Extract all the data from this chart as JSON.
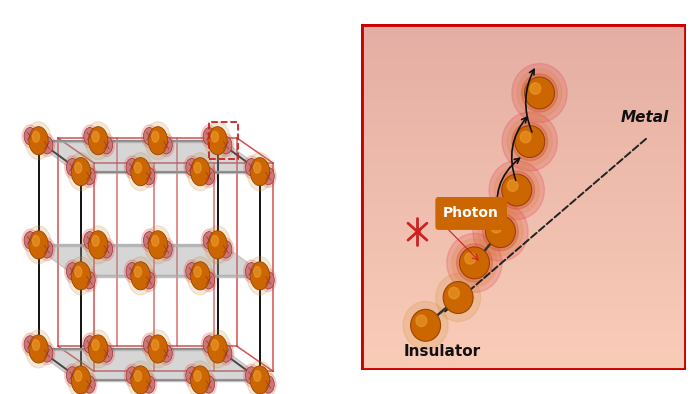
{
  "bg_color": "#ffffff",
  "lattice_orange": "#cc6600",
  "lattice_small_color": "#cc7777",
  "box_black": "#111111",
  "box_red": "#cc3333",
  "right_border_color": "#cc0000",
  "photon_label": "Photon",
  "photon_box_color": "#cc6600",
  "insulator_label": "Insulator",
  "metal_label": "Metal",
  "atom_orange": "#cc6600",
  "atom_highlight": "#e8951a",
  "atom_glow": "#dd3333",
  "arrow_color": "#111111",
  "dashed_line_color": "#222222"
}
